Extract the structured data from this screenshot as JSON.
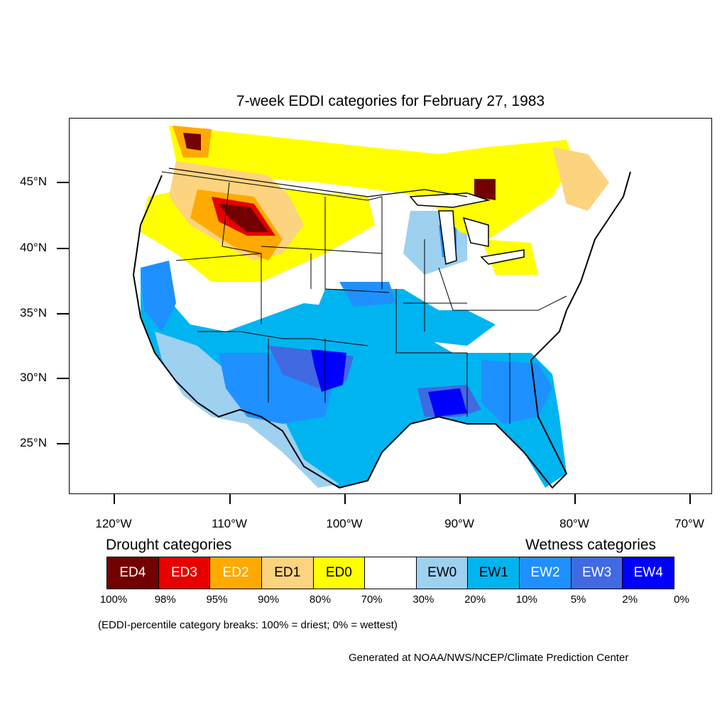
{
  "title": "7-week EDDI categories for February 27, 1983",
  "map": {
    "lat_labels": [
      "45°N",
      "40°N",
      "35°N",
      "30°N",
      "25°N"
    ],
    "lon_labels": [
      "120°W",
      "110°W",
      "100°W",
      "90°W",
      "80°W",
      "70°W"
    ]
  },
  "legend": {
    "drought_heading": "Drought categories",
    "wetness_heading": "Wetness categories",
    "categories": [
      {
        "label": "ED4",
        "color": "#730000",
        "text_color": "#ffffff"
      },
      {
        "label": "ED3",
        "color": "#e60000",
        "text_color": "#ffffff"
      },
      {
        "label": "ED2",
        "color": "#ffaa00",
        "text_color": "#ffffff"
      },
      {
        "label": "ED1",
        "color": "#fcd37f",
        "text_color": "#000000"
      },
      {
        "label": "ED0",
        "color": "#ffff00",
        "text_color": "#000000"
      },
      {
        "label": "",
        "color": "#ffffff",
        "text_color": "#000000"
      },
      {
        "label": "EW0",
        "color": "#9ed0f0",
        "text_color": "#000000"
      },
      {
        "label": "EW1",
        "color": "#00b4f0",
        "text_color": "#000000"
      },
      {
        "label": "EW2",
        "color": "#1e90ff",
        "text_color": "#ffffff"
      },
      {
        "label": "EW3",
        "color": "#4169e1",
        "text_color": "#ffffff"
      },
      {
        "label": "EW4",
        "color": "#0000ff",
        "text_color": "#ffffff"
      }
    ],
    "percent_breaks": [
      "100%",
      "98%",
      "95%",
      "90%",
      "80%",
      "70%",
      "30%",
      "20%",
      "10%",
      "5%",
      "2%",
      "0%"
    ],
    "note": "(EDDI-percentile category breaks: 100% = driest; 0% = wettest)"
  },
  "credit": "Generated at NOAA/NWS/NCEP/Climate Prediction Center"
}
